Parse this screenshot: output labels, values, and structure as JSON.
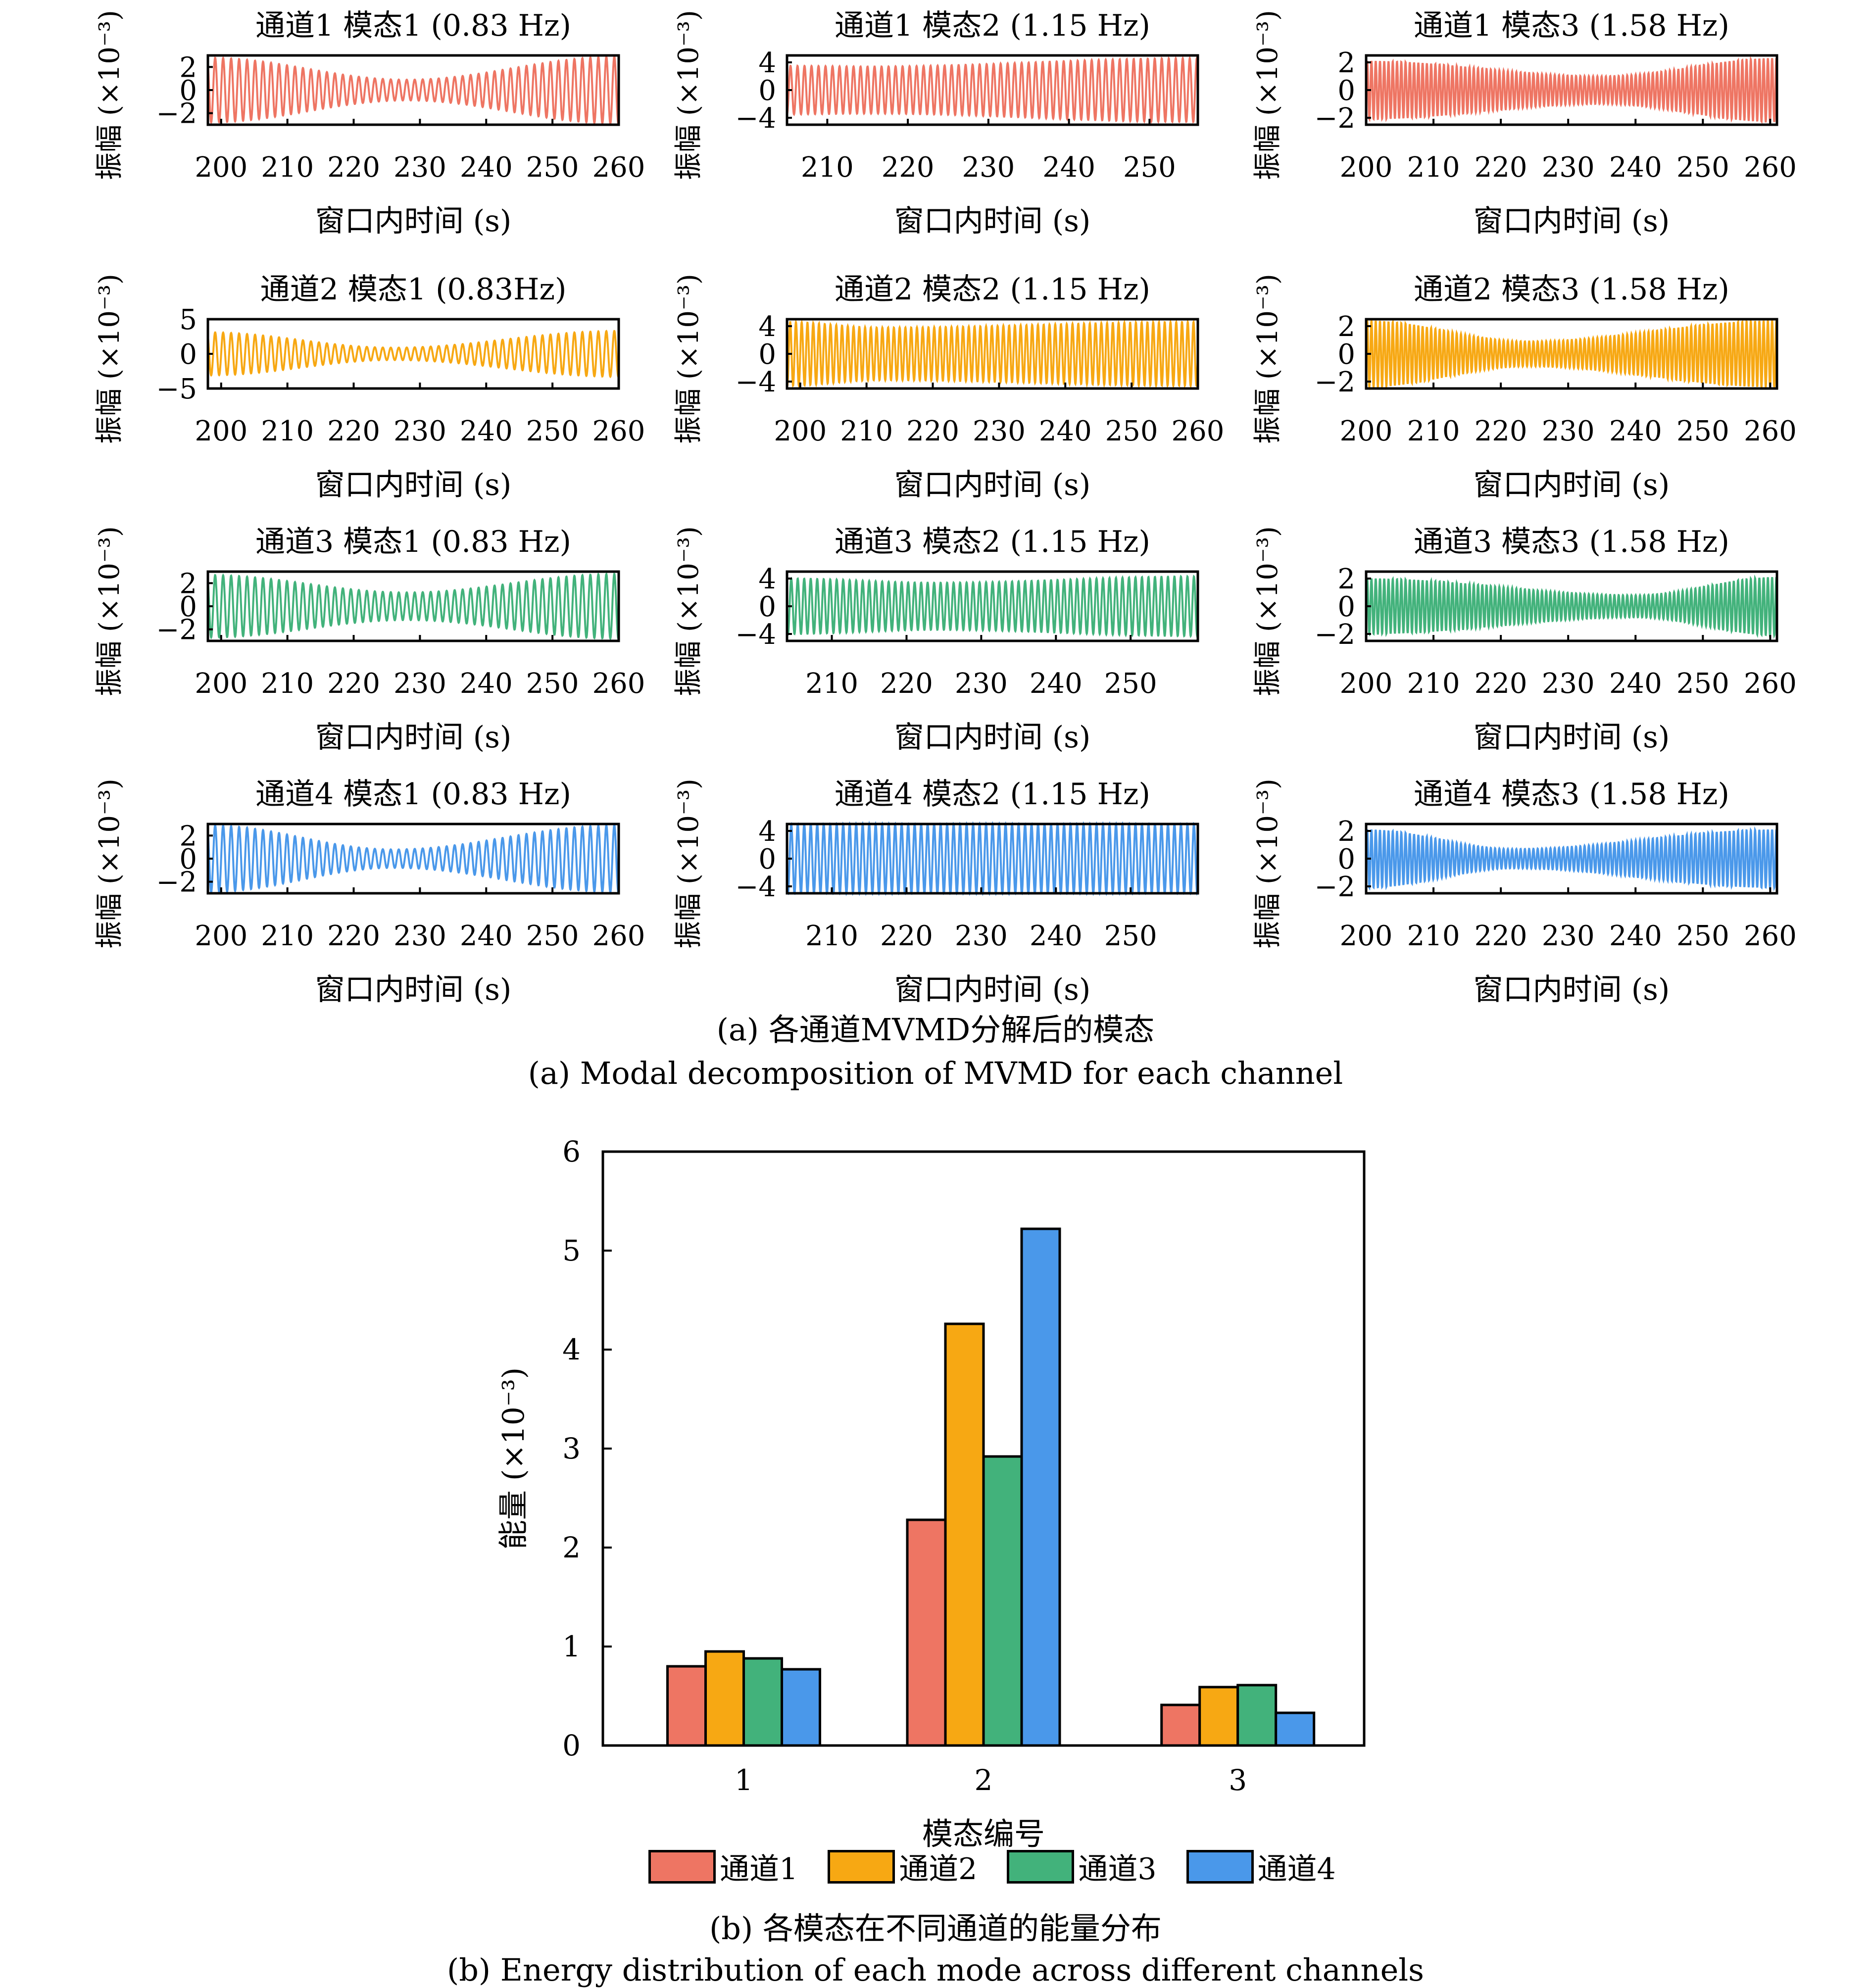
{
  "colors": {
    "channel1": "#EE7563",
    "channel2": "#F7A813",
    "channel3": "#42B27B",
    "channel4": "#4A98EA",
    "axis": "#000000"
  },
  "captions": {
    "a_cn": "(a) 各通道MVMD分解后的模态",
    "a_en": "(a) Modal decomposition of MVMD for each channel",
    "b_cn": "(b) 各模态在不同通道的能量分布",
    "b_en": "(b) Energy distribution of each mode across different channels"
  },
  "chart_data": [
    {
      "type": "line",
      "panel": "subplot-grid",
      "xlabel": "窗口内时间 (s)",
      "ylabel": "振幅 (×10⁻³)",
      "subplots": [
        {
          "title": "通道1 模态1 (0.83 Hz)",
          "channel": 1,
          "mode": 1,
          "freq_hz": 0.83,
          "xlim": [
            198,
            260
          ],
          "xticks": [
            200,
            210,
            220,
            230,
            240,
            250,
            260
          ],
          "ylim": [
            -3,
            3
          ],
          "yticks": [
            -2,
            0,
            2
          ],
          "envelope": {
            "start": 2.8,
            "min": 0.9,
            "min_at": 228,
            "end": 2.9
          }
        },
        {
          "title": "通道1 模态2 (1.15 Hz)",
          "channel": 1,
          "mode": 2,
          "freq_hz": 1.15,
          "xlim": [
            205,
            256
          ],
          "xticks": [
            210,
            220,
            230,
            240,
            250
          ],
          "ylim": [
            -5,
            5
          ],
          "yticks": [
            -4,
            0,
            4
          ],
          "envelope": {
            "start": 3.5,
            "min": 3.4,
            "min_at": 215,
            "end": 4.6
          }
        },
        {
          "title": "通道1 模态3 (1.58 Hz)",
          "channel": 1,
          "mode": 3,
          "freq_hz": 1.58,
          "xlim": [
            200,
            261
          ],
          "xticks": [
            200,
            210,
            220,
            230,
            240,
            250,
            260
          ],
          "ylim": [
            -2.5,
            2.5
          ],
          "yticks": [
            -2,
            0,
            2
          ],
          "envelope": {
            "start": 2.1,
            "min": 1.0,
            "min_at": 235,
            "end": 2.3
          }
        },
        {
          "title": "通道2 模态1 (0.83Hz)",
          "channel": 2,
          "mode": 1,
          "freq_hz": 0.83,
          "xlim": [
            198,
            260
          ],
          "xticks": [
            200,
            210,
            220,
            230,
            240,
            250,
            260
          ],
          "ylim": [
            -5,
            5
          ],
          "yticks": [
            -5,
            0,
            5
          ],
          "envelope": {
            "start": 3.1,
            "min": 0.9,
            "min_at": 226,
            "end": 3.3
          }
        },
        {
          "title": "通道2 模态2 (1.15 Hz)",
          "channel": 2,
          "mode": 2,
          "freq_hz": 1.15,
          "xlim": [
            198,
            260
          ],
          "xticks": [
            200,
            210,
            220,
            230,
            240,
            250,
            260
          ],
          "ylim": [
            -5,
            5
          ],
          "yticks": [
            -4,
            0,
            4
          ],
          "envelope": {
            "start": 4.6,
            "min": 3.8,
            "min_at": 212,
            "end": 4.6
          }
        },
        {
          "title": "通道2 模态3 (1.58 Hz)",
          "channel": 2,
          "mode": 3,
          "freq_hz": 1.58,
          "xlim": [
            200,
            261
          ],
          "xticks": [
            200,
            210,
            220,
            230,
            240,
            250,
            260
          ],
          "ylim": [
            -2.5,
            2.5
          ],
          "yticks": [
            -2,
            0,
            2
          ],
          "envelope": {
            "start": 2.4,
            "min": 0.9,
            "min_at": 224,
            "end": 2.4
          }
        },
        {
          "title": "通道3 模态1 (0.83 Hz)",
          "channel": 3,
          "mode": 1,
          "freq_hz": 0.83,
          "xlim": [
            198,
            260
          ],
          "xticks": [
            200,
            210,
            220,
            230,
            240,
            250,
            260
          ],
          "ylim": [
            -3,
            3
          ],
          "yticks": [
            -2,
            0,
            2
          ],
          "envelope": {
            "start": 2.7,
            "min": 1.2,
            "min_at": 228,
            "end": 2.8
          }
        },
        {
          "title": "通道3 模态2 (1.15 Hz)",
          "channel": 3,
          "mode": 2,
          "freq_hz": 1.15,
          "xlim": [
            204,
            259
          ],
          "xticks": [
            210,
            220,
            230,
            240,
            250
          ],
          "ylim": [
            -5,
            5
          ],
          "yticks": [
            -4,
            0,
            4
          ],
          "envelope": {
            "start": 4.0,
            "min": 3.4,
            "min_at": 224,
            "end": 4.3
          }
        },
        {
          "title": "通道3 模态3 (1.58 Hz)",
          "channel": 3,
          "mode": 3,
          "freq_hz": 1.58,
          "xlim": [
            200,
            261
          ],
          "xticks": [
            200,
            210,
            220,
            230,
            240,
            250,
            260
          ],
          "ylim": [
            -2.5,
            2.5
          ],
          "yticks": [
            -2,
            0,
            2
          ],
          "envelope": {
            "start": 2.0,
            "min": 0.8,
            "min_at": 240,
            "end": 2.1
          }
        },
        {
          "title": "通道4 模态1 (0.83 Hz)",
          "channel": 4,
          "mode": 1,
          "freq_hz": 0.83,
          "xlim": [
            198,
            260
          ],
          "xticks": [
            200,
            210,
            220,
            230,
            240,
            250,
            260
          ],
          "ylim": [
            -3,
            3
          ],
          "yticks": [
            -2,
            0,
            2
          ],
          "envelope": {
            "start": 2.9,
            "min": 0.8,
            "min_at": 226,
            "end": 2.9
          }
        },
        {
          "title": "通道4 模态2 (1.15 Hz)",
          "channel": 4,
          "mode": 2,
          "freq_hz": 1.15,
          "xlim": [
            204,
            259
          ],
          "xticks": [
            210,
            220,
            230,
            240,
            250
          ],
          "ylim": [
            -5,
            5
          ],
          "yticks": [
            -4,
            0,
            4
          ],
          "envelope": {
            "start": 5.0,
            "min": 5.0,
            "min_at": 230,
            "end": 5.0
          }
        },
        {
          "title": "通道4 模态3 (1.58 Hz)",
          "channel": 4,
          "mode": 3,
          "freq_hz": 1.58,
          "xlim": [
            200,
            261
          ],
          "xticks": [
            200,
            210,
            220,
            230,
            240,
            250,
            260
          ],
          "ylim": [
            -2.5,
            2.5
          ],
          "yticks": [
            -2,
            0,
            2
          ],
          "envelope": {
            "start": 2.1,
            "min": 0.7,
            "min_at": 222,
            "end": 2.1
          }
        }
      ]
    },
    {
      "type": "bar",
      "panel": "energy",
      "title": "",
      "xlabel": "模态编号",
      "ylabel": "能量 (×10⁻³)",
      "categories": [
        "1",
        "2",
        "3"
      ],
      "ylim": [
        0,
        6
      ],
      "yticks": [
        0,
        1,
        2,
        3,
        4,
        5,
        6
      ],
      "legend_position": "bottom",
      "series": [
        {
          "name": "通道1",
          "values": [
            0.8,
            2.28,
            0.41
          ]
        },
        {
          "name": "通道2",
          "values": [
            0.95,
            4.26,
            0.59
          ]
        },
        {
          "name": "通道3",
          "values": [
            0.88,
            2.92,
            0.61
          ]
        },
        {
          "name": "通道4",
          "values": [
            0.77,
            5.22,
            0.33
          ]
        }
      ]
    }
  ]
}
